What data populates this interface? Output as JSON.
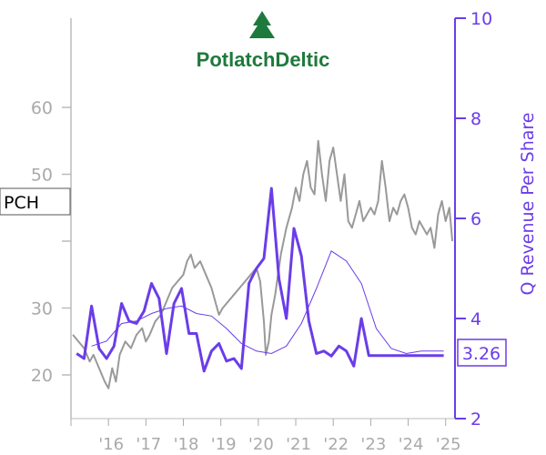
{
  "chart_data": {
    "type": "line",
    "title": "",
    "ticker_label": "PCH",
    "logo_text": "PotlatchDeltic",
    "x_tick_labels": [
      "'16",
      "'17",
      "'18",
      "'19",
      "'20",
      "'21",
      "'22",
      "'23",
      "'24",
      "'25"
    ],
    "x_range": [
      2015.0,
      2025.25
    ],
    "left_axis": {
      "label": "",
      "ticks": [
        20,
        30,
        40,
        50,
        60
      ],
      "tick_labels": [
        "20",
        "30",
        "",
        "50",
        "60"
      ],
      "range": [
        15,
        60
      ]
    },
    "right_axis": {
      "label": "Q Revenue Per Share",
      "ticks": [
        2,
        4,
        6,
        8,
        10
      ],
      "tick_labels": [
        "2",
        "4",
        "6",
        "8",
        "10"
      ],
      "range": [
        2,
        10
      ]
    },
    "last_value_label": "3.26",
    "colors": {
      "price": "#999999",
      "revenue": "#6a3de8",
      "axis_left": "#aaaaaa",
      "logo": "#1e7a3c"
    },
    "series": [
      {
        "name": "",
        "axis": "left",
        "style": "price",
        "x": [
          2015.05,
          2015.2,
          2015.35,
          2015.5,
          2015.6,
          2015.75,
          2015.9,
          2016.0,
          2016.1,
          2016.2,
          2016.3,
          2016.45,
          2016.6,
          2016.75,
          2016.9,
          2017.0,
          2017.1,
          2017.25,
          2017.4,
          2017.55,
          2017.7,
          2017.85,
          2018.0,
          2018.1,
          2018.2,
          2018.3,
          2018.45,
          2018.6,
          2018.75,
          2018.85,
          2018.95,
          2019.05,
          2019.2,
          2019.35,
          2019.5,
          2019.65,
          2019.8,
          2019.95,
          2020.05,
          2020.15,
          2020.2,
          2020.28,
          2020.35,
          2020.45,
          2020.6,
          2020.75,
          2020.9,
          2021.0,
          2021.1,
          2021.2,
          2021.3,
          2021.4,
          2021.5,
          2021.6,
          2021.7,
          2021.8,
          2021.9,
          2022.0,
          2022.1,
          2022.2,
          2022.3,
          2022.4,
          2022.5,
          2022.6,
          2022.7,
          2022.8,
          2022.9,
          2023.0,
          2023.1,
          2023.2,
          2023.3,
          2023.4,
          2023.5,
          2023.6,
          2023.7,
          2023.8,
          2023.9,
          2024.0,
          2024.1,
          2024.2,
          2024.3,
          2024.4,
          2024.5,
          2024.6,
          2024.7,
          2024.8,
          2024.9,
          2025.0,
          2025.1,
          2025.18
        ],
        "values": [
          26,
          25,
          24,
          22,
          23,
          21,
          19,
          18,
          21,
          19,
          23,
          25,
          24,
          26,
          27,
          25,
          26,
          28,
          29,
          31,
          33,
          34,
          35,
          37,
          38,
          36,
          37,
          35,
          33,
          31,
          29,
          30,
          31,
          32,
          33,
          34,
          35,
          36,
          34,
          28,
          23,
          25,
          29,
          32,
          38,
          42,
          45,
          48,
          46,
          50,
          52,
          48,
          47,
          55,
          50,
          46,
          52,
          54,
          50,
          46,
          50,
          43,
          42,
          44,
          46,
          43,
          44,
          45,
          44,
          46,
          52,
          48,
          43,
          45,
          44,
          46,
          47,
          45,
          42,
          41,
          43,
          42,
          41,
          42,
          39,
          44,
          46,
          43,
          45,
          40
        ]
      },
      {
        "name": "",
        "axis": "right",
        "style": "revenue",
        "x": [
          2015.15,
          2015.35,
          2015.55,
          2015.75,
          2015.95,
          2016.15,
          2016.35,
          2016.55,
          2016.75,
          2016.95,
          2017.15,
          2017.35,
          2017.55,
          2017.75,
          2017.95,
          2018.15,
          2018.35,
          2018.55,
          2018.75,
          2018.95,
          2019.15,
          2019.35,
          2019.55,
          2019.75,
          2019.95,
          2020.15,
          2020.35,
          2020.55,
          2020.75,
          2020.95,
          2021.15,
          2021.35,
          2021.55,
          2021.75,
          2021.95,
          2022.15,
          2022.35,
          2022.55,
          2022.75,
          2022.95,
          2023.15,
          2023.35,
          2023.55,
          2023.75,
          2023.95,
          2024.15,
          2024.35,
          2024.55,
          2024.75,
          2024.95
        ],
        "values": [
          3.3,
          3.2,
          4.25,
          3.4,
          3.2,
          3.45,
          4.3,
          3.95,
          3.9,
          4.15,
          4.7,
          4.4,
          3.3,
          4.3,
          4.6,
          3.7,
          3.7,
          2.95,
          3.35,
          3.5,
          3.15,
          3.2,
          3.0,
          4.7,
          5.0,
          5.2,
          6.6,
          4.8,
          4.0,
          5.8,
          5.25,
          3.95,
          3.3,
          3.35,
          3.25,
          3.45,
          3.35,
          3.05,
          4.0,
          3.26,
          3.26,
          3.26,
          3.26,
          3.26,
          3.26,
          3.26,
          3.26,
          3.26,
          3.26,
          3.26
        ]
      },
      {
        "name": "",
        "axis": "right",
        "style": "revenue-trend",
        "x": [
          2015.55,
          2015.95,
          2016.35,
          2016.75,
          2017.15,
          2017.55,
          2017.95,
          2018.35,
          2018.75,
          2019.15,
          2019.55,
          2019.95,
          2020.35,
          2020.75,
          2021.15,
          2021.55,
          2021.95,
          2022.35,
          2022.75,
          2023.15,
          2023.55,
          2023.95,
          2024.35,
          2024.75,
          2024.95
        ],
        "values": [
          3.45,
          3.55,
          3.9,
          3.95,
          4.1,
          4.2,
          4.25,
          4.1,
          4.05,
          3.8,
          3.5,
          3.35,
          3.3,
          3.45,
          3.9,
          4.6,
          5.35,
          5.15,
          4.7,
          3.8,
          3.4,
          3.3,
          3.35,
          3.35,
          3.35
        ]
      }
    ]
  }
}
